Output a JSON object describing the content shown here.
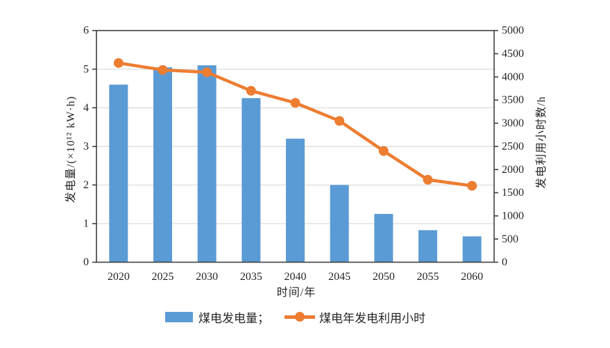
{
  "chart_data": {
    "type": "combo-bar-line",
    "categories": [
      "2020",
      "2025",
      "2030",
      "2035",
      "2040",
      "2045",
      "2050",
      "2055",
      "2060"
    ],
    "series": [
      {
        "name": "煤电发电量",
        "type": "bar",
        "axis": "left",
        "values": [
          4.6,
          5.05,
          5.1,
          4.25,
          3.2,
          2.0,
          1.25,
          0.83,
          0.67
        ]
      },
      {
        "name": "煤电年发电利用小时",
        "type": "line",
        "axis": "right",
        "values": [
          4300,
          4150,
          4100,
          3700,
          3440,
          3050,
          2400,
          1780,
          1650
        ]
      }
    ],
    "xlabel": "时间/年",
    "ylabel_left": "发电量/(×10¹² kW·h)",
    "ylabel_right": "发电利用小时数/h",
    "ylim_left": [
      0,
      6
    ],
    "ylim_right": [
      0,
      5000
    ],
    "yticks_left": [
      0,
      1,
      2,
      3,
      4,
      5,
      6
    ],
    "yticks_right": [
      0,
      500,
      1000,
      1500,
      2000,
      2500,
      3000,
      3500,
      4000,
      4500,
      5000
    ],
    "gridlines_left": [
      1,
      2,
      3,
      4,
      5
    ],
    "grid": true,
    "legend": {
      "position": "bottom",
      "items": [
        {
          "label": "煤电发电量；"
        },
        {
          "label": "煤电年发电利用小时"
        }
      ]
    },
    "colors": {
      "bar": "#5b9bd5",
      "line": "#ed7d31",
      "grid": "#d9d9d9",
      "axis": "#404040",
      "text": "#262626"
    }
  }
}
